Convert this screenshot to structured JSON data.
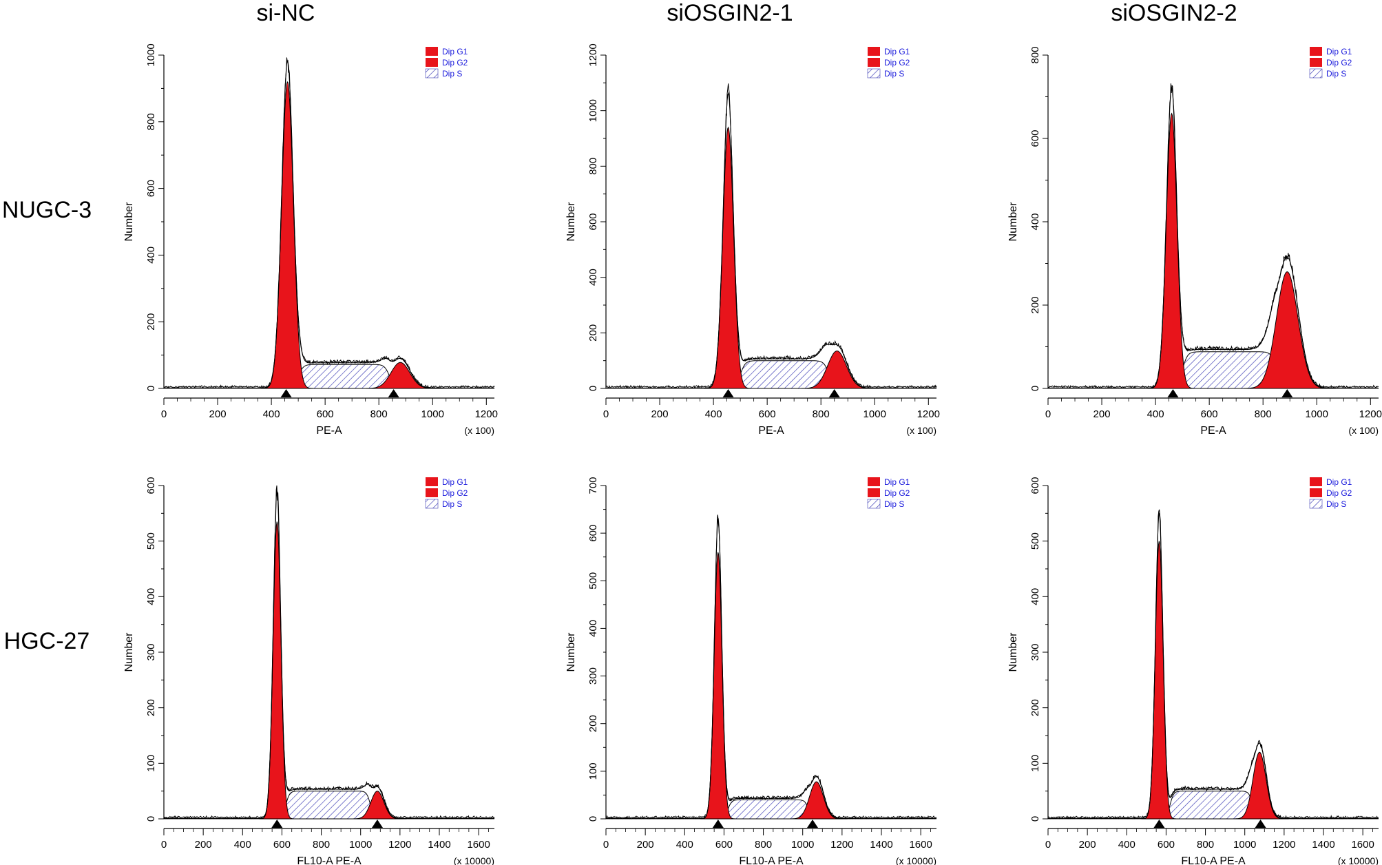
{
  "figure": {
    "column_titles": [
      "si-NC",
      "siOSGIN2-1",
      "siOSGIN2-2"
    ],
    "row_labels": [
      "NUGC-3",
      "HGC-27"
    ]
  },
  "colors": {
    "g1": "#e8141b",
    "g2": "#e8141b",
    "s_hatch": "#3a3ab4",
    "legend_text": "#1a1adc",
    "envelope": "#000000"
  },
  "chart_data": [
    {
      "type": "area",
      "row": 0,
      "col": 0,
      "ylabel": "Number",
      "xlabel": "PE-A",
      "x_scale_note": "(x 100)",
      "xlim": [
        0,
        1230
      ],
      "ylim": [
        0,
        1000
      ],
      "xticks": [
        0,
        200,
        400,
        600,
        800,
        1000,
        1200
      ],
      "yticks": [
        0,
        200,
        400,
        600,
        800,
        1000
      ],
      "legend": [
        "Dip G1",
        "Dip G2",
        "Dip S"
      ],
      "g1": {
        "mean": 460,
        "sd": 22,
        "height": 920
      },
      "g2": {
        "mean": 880,
        "sd": 35,
        "height": 78
      },
      "s": {
        "start": 500,
        "end": 840,
        "height": 72
      },
      "envelope_peak": 980,
      "markers_x": [
        455,
        855
      ]
    },
    {
      "type": "area",
      "row": 0,
      "col": 1,
      "ylabel": "Number",
      "xlabel": "PE-A",
      "x_scale_note": "(x 100)",
      "xlim": [
        0,
        1230
      ],
      "ylim": [
        0,
        1200
      ],
      "xticks": [
        0,
        200,
        400,
        600,
        800,
        1000,
        1200
      ],
      "yticks": [
        0,
        200,
        400,
        600,
        800,
        1000,
        1200
      ],
      "legend": [
        "Dip G1",
        "Dip G2",
        "Dip S"
      ],
      "g1": {
        "mean": 455,
        "sd": 20,
        "height": 940
      },
      "g2": {
        "mean": 860,
        "sd": 35,
        "height": 135
      },
      "s": {
        "start": 500,
        "end": 830,
        "height": 100
      },
      "envelope_peak": 1060,
      "markers_x": [
        455,
        850
      ]
    },
    {
      "type": "area",
      "row": 0,
      "col": 2,
      "ylabel": "Number",
      "xlabel": "PE-A",
      "x_scale_note": "(x 100)",
      "xlim": [
        0,
        1230
      ],
      "ylim": [
        0,
        800
      ],
      "xticks": [
        0,
        200,
        400,
        600,
        800,
        1000,
        1200
      ],
      "yticks": [
        0,
        200,
        400,
        600,
        800
      ],
      "legend": [
        "Dip G1",
        "Dip G2",
        "Dip S"
      ],
      "g1": {
        "mean": 460,
        "sd": 20,
        "height": 660
      },
      "g2": {
        "mean": 890,
        "sd": 40,
        "height": 280
      },
      "s": {
        "start": 500,
        "end": 850,
        "height": 88
      },
      "envelope_peak": 720,
      "markers_x": [
        465,
        890
      ]
    },
    {
      "type": "area",
      "row": 1,
      "col": 0,
      "ylabel": "Number",
      "xlabel": "FL10-A PE-A",
      "x_scale_note": "(x 10000)",
      "xlim": [
        0,
        1680
      ],
      "ylim": [
        0,
        600
      ],
      "xticks": [
        0,
        200,
        400,
        600,
        800,
        1000,
        1200,
        1400,
        1600
      ],
      "yticks": [
        0,
        100,
        200,
        300,
        400,
        500,
        600
      ],
      "legend": [
        "Dip G1",
        "Dip G2",
        "Dip S"
      ],
      "g1": {
        "mean": 575,
        "sd": 20,
        "height": 535
      },
      "g2": {
        "mean": 1085,
        "sd": 33,
        "height": 50
      },
      "s": {
        "start": 620,
        "end": 1050,
        "height": 50
      },
      "envelope_peak": 590,
      "markers_x": [
        575,
        1085
      ]
    },
    {
      "type": "area",
      "row": 1,
      "col": 1,
      "ylabel": "Number",
      "xlabel": "FL10-A PE-A",
      "x_scale_note": "(x 10000)",
      "xlim": [
        0,
        1680
      ],
      "ylim": [
        0,
        700
      ],
      "xticks": [
        0,
        200,
        400,
        600,
        800,
        1000,
        1200,
        1400,
        1600
      ],
      "yticks": [
        0,
        100,
        200,
        300,
        400,
        500,
        600,
        700
      ],
      "legend": [
        "Dip G1",
        "Dip G2",
        "Dip S"
      ],
      "g1": {
        "mean": 570,
        "sd": 20,
        "height": 560
      },
      "g2": {
        "mean": 1070,
        "sd": 35,
        "height": 78
      },
      "s": {
        "start": 620,
        "end": 1030,
        "height": 40
      },
      "envelope_peak": 630,
      "markers_x": [
        570,
        1050
      ]
    },
    {
      "type": "area",
      "row": 1,
      "col": 2,
      "ylabel": "Number",
      "xlabel": "FL10-A PE-A",
      "x_scale_note": "(x 10000)",
      "xlim": [
        0,
        1680
      ],
      "ylim": [
        0,
        600
      ],
      "xticks": [
        0,
        200,
        400,
        600,
        800,
        1000,
        1200,
        1400,
        1600
      ],
      "yticks": [
        0,
        100,
        200,
        300,
        400,
        500,
        600
      ],
      "legend": [
        "Dip G1",
        "Dip G2",
        "Dip S"
      ],
      "g1": {
        "mean": 565,
        "sd": 20,
        "height": 500
      },
      "g2": {
        "mean": 1075,
        "sd": 33,
        "height": 120
      },
      "s": {
        "start": 620,
        "end": 1040,
        "height": 50
      },
      "envelope_peak": 550,
      "markers_x": [
        565,
        1080
      ]
    }
  ]
}
